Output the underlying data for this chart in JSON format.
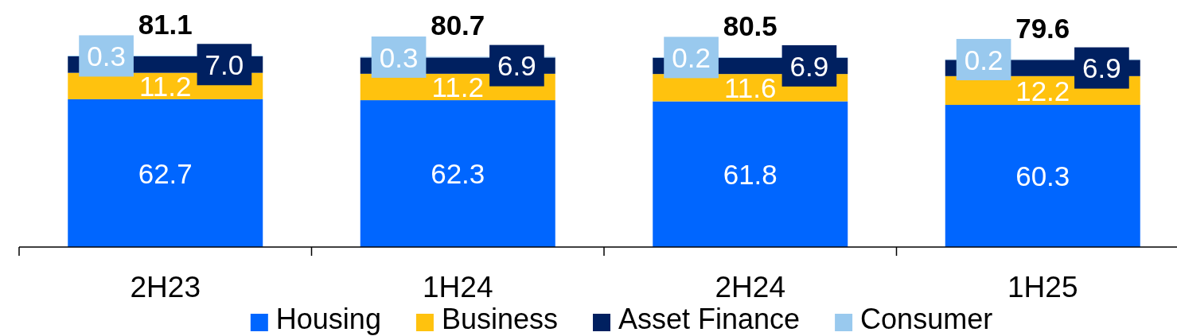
{
  "chart_data": {
    "type": "bar",
    "stacked": true,
    "categories": [
      "2H23",
      "1H24",
      "2H24",
      "1H25"
    ],
    "series": [
      {
        "name": "Housing",
        "color": "#0066ff",
        "values": [
          62.7,
          62.3,
          61.8,
          60.3
        ],
        "value_labels": [
          "62.7",
          "62.3",
          "61.8",
          "60.3"
        ]
      },
      {
        "name": "Business",
        "color": "#ffc20e",
        "values": [
          11.2,
          11.2,
          11.6,
          12.2
        ],
        "value_labels": [
          "11.2",
          "11.2",
          "11.6",
          "12.2"
        ]
      },
      {
        "name": "Asset Finance",
        "color": "#002060",
        "values": [
          7.0,
          6.9,
          6.9,
          6.9
        ],
        "value_labels": [
          "7.0",
          "6.9",
          "6.9",
          "6.9"
        ]
      },
      {
        "name": "Consumer",
        "color": "#99c9ee",
        "values": [
          0.3,
          0.3,
          0.2,
          0.2
        ],
        "value_labels": [
          "0.3",
          "0.3",
          "0.2",
          "0.2"
        ]
      }
    ],
    "totals": [
      "81.1",
      "80.7",
      "80.5",
      "79.6"
    ],
    "legend": "bottom"
  }
}
